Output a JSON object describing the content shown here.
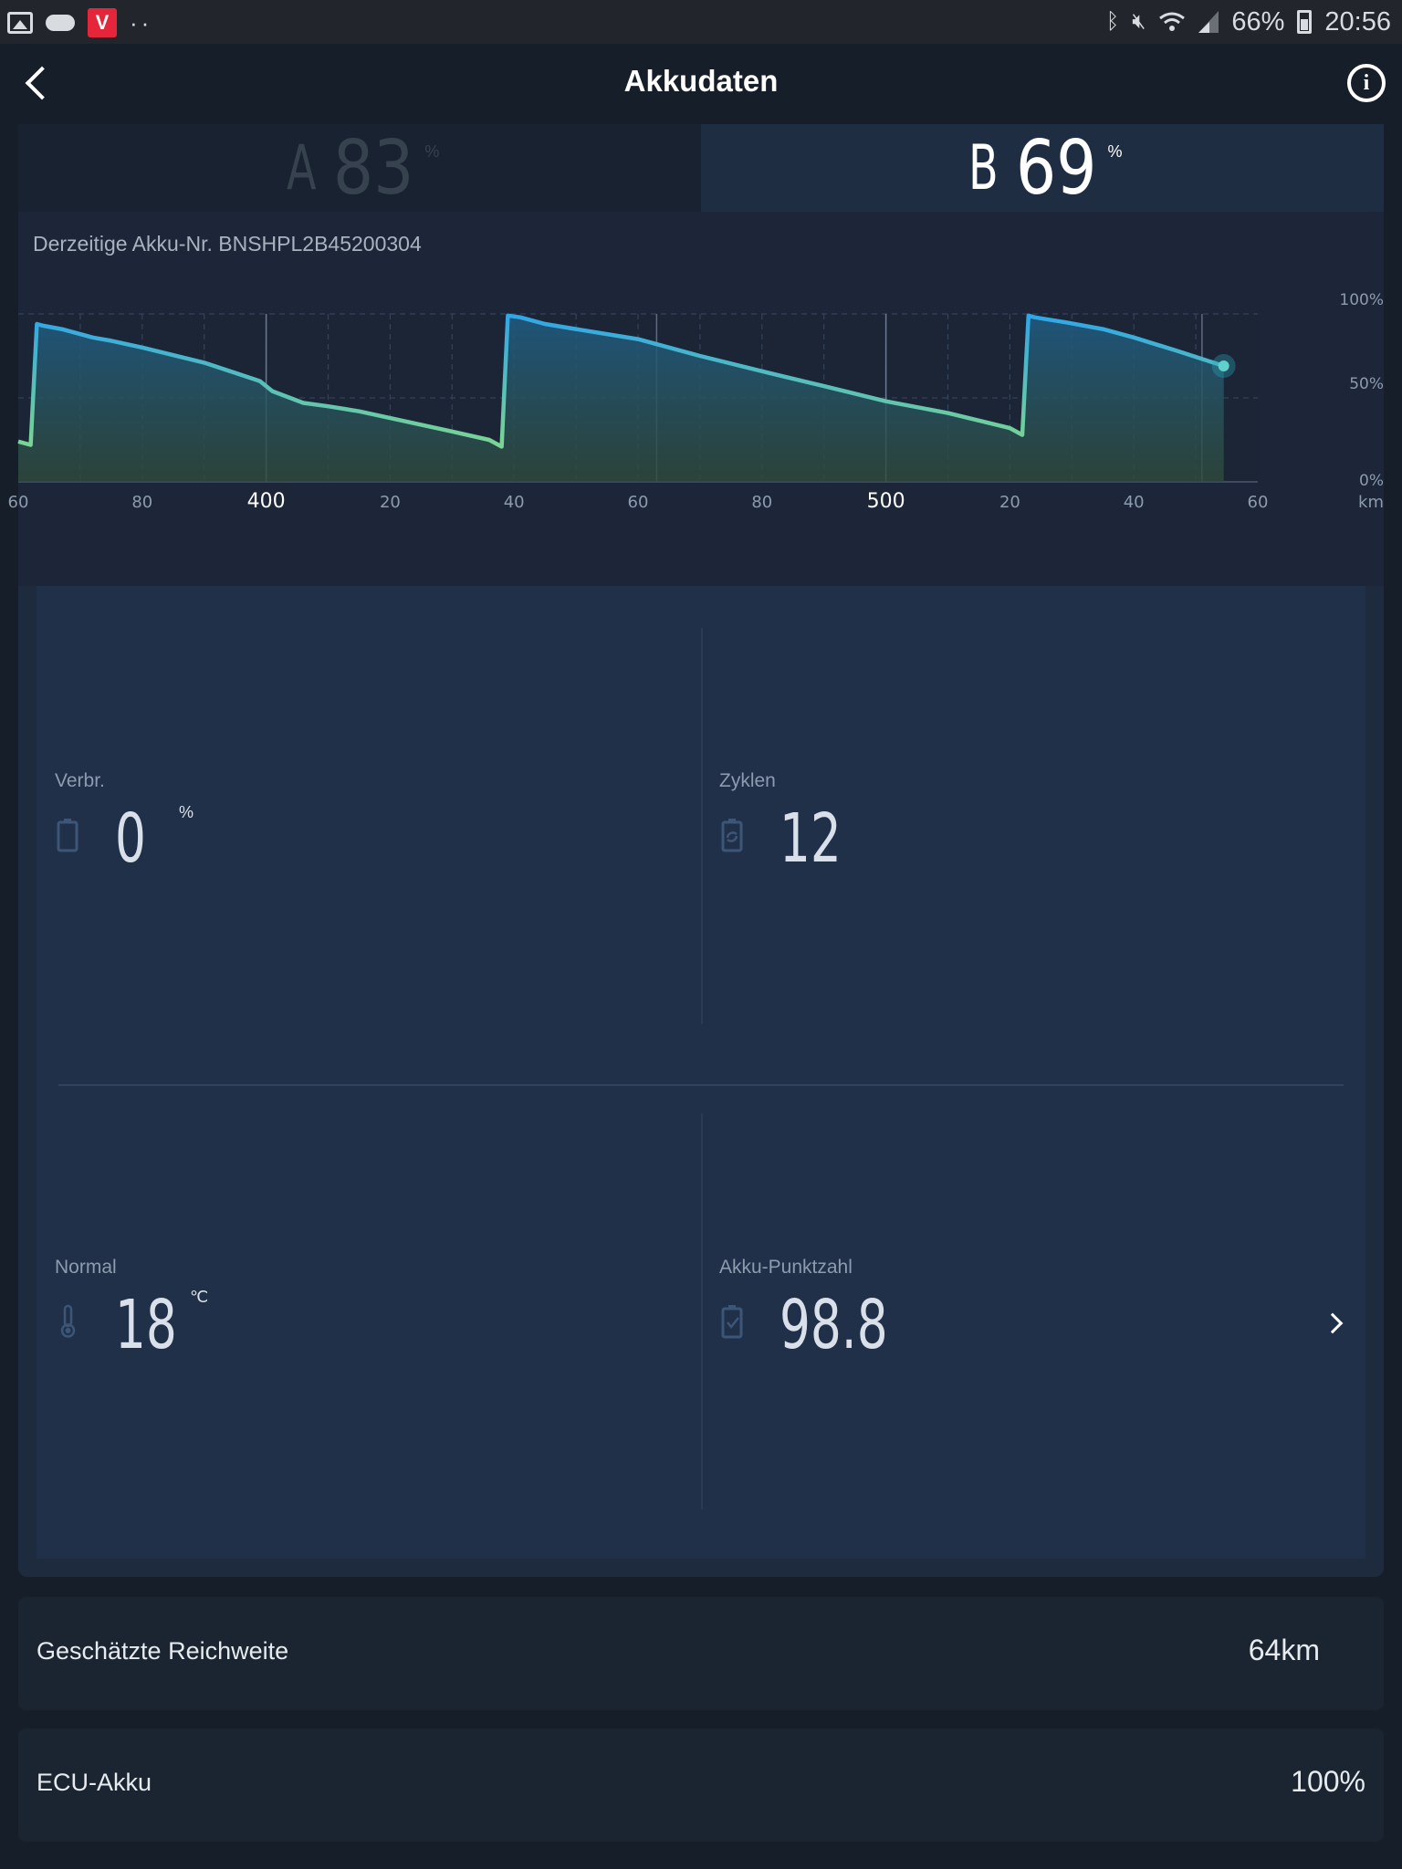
{
  "status_bar": {
    "battery": "66%",
    "time": "20:56",
    "icons": [
      "gallery-icon",
      "cloud-icon",
      "vivaldi-icon",
      "more-dots-icon",
      "bluetooth-icon",
      "mute-icon",
      "wifi-icon",
      "signal-icon",
      "battery-icon"
    ]
  },
  "header": {
    "title": "Akkudaten"
  },
  "tabs": [
    {
      "letter": "A",
      "value": "83",
      "unit": "%",
      "active": false
    },
    {
      "letter": "B",
      "value": "69",
      "unit": "%",
      "active": true
    }
  ],
  "chart_data": {
    "type": "area",
    "title": "Derzeitige Akku-Nr. BNSHPL2B45200304",
    "x_unit": "km",
    "y_ticks": [
      "100%",
      "50%",
      "0%"
    ],
    "ylim": [
      0,
      100
    ],
    "x_ticks": [
      {
        "x": 360,
        "label": "60"
      },
      {
        "x": 380,
        "label": "80"
      },
      {
        "x": 400,
        "label": "400",
        "major": true
      },
      {
        "x": 420,
        "label": "20"
      },
      {
        "x": 440,
        "label": "40"
      },
      {
        "x": 460,
        "label": "60"
      },
      {
        "x": 480,
        "label": "80"
      },
      {
        "x": 500,
        "label": "500",
        "major": true
      },
      {
        "x": 520,
        "label": "20"
      },
      {
        "x": 540,
        "label": "40"
      },
      {
        "x": 560,
        "label": "60"
      }
    ],
    "xlim": [
      360,
      560
    ],
    "x": [
      360,
      362,
      363,
      364,
      367,
      370,
      372,
      375,
      380,
      390,
      399,
      401,
      406,
      410,
      415,
      420,
      430,
      436,
      438,
      439,
      441,
      445,
      450,
      460,
      470,
      481,
      490,
      500,
      510,
      520,
      522,
      523,
      524,
      529,
      535,
      540,
      547,
      554.5
    ],
    "values": [
      24,
      22,
      94,
      93,
      91,
      88,
      86,
      84,
      80,
      71,
      60,
      54,
      47,
      45,
      42,
      38,
      30,
      25,
      21,
      99,
      98,
      94,
      91,
      85,
      75,
      65,
      57,
      48,
      41,
      32,
      28,
      99,
      98,
      95,
      91,
      86,
      78,
      69
    ],
    "series": [
      {
        "name": "B",
        "current_value": 69
      }
    ]
  },
  "stats": {
    "verbr": {
      "label": "Verbr.",
      "value": "0",
      "unit": "%",
      "icon": "battery-icon"
    },
    "zyklen": {
      "label": "Zyklen",
      "value": "12",
      "icon": "cycle-battery-icon"
    },
    "normal": {
      "label": "Normal",
      "value": "18",
      "unit": "℃",
      "icon": "thermometer-icon"
    },
    "score": {
      "label": "Akku-Punktzahl",
      "value": "98.8",
      "icon": "battery-check-icon"
    }
  },
  "range": {
    "label": "Geschätzte Reichweite",
    "value": "64km"
  },
  "ecu": {
    "label": "ECU-Akku",
    "value": "100%"
  },
  "colors": {
    "accent_blue": "#2fa6e8",
    "accent_green": "#8fe27a",
    "background": "#161e29",
    "panel": "#213049"
  }
}
